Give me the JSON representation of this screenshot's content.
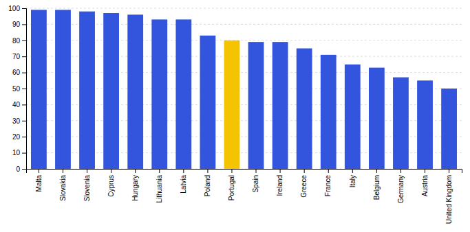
{
  "chart_data": {
    "type": "bar",
    "categories": [
      "Malta",
      "Slovakia",
      "Slovenia",
      "Cyprus",
      "Hungary",
      "Lithuania",
      "Latvia",
      "Poland",
      "Portugal",
      "Spain",
      "Ireland",
      "Greece",
      "France",
      "Italy",
      "Belgium",
      "Germany",
      "Austria",
      "United Kingdom"
    ],
    "values": [
      99,
      99,
      98,
      97,
      96,
      93,
      93,
      83,
      80,
      79,
      79,
      75,
      71,
      65,
      63,
      57,
      55,
      50
    ],
    "colors": [
      "#3355dd",
      "#3355dd",
      "#3355dd",
      "#3355dd",
      "#3355dd",
      "#3355dd",
      "#3355dd",
      "#3355dd",
      "#f5c400",
      "#3355dd",
      "#3355dd",
      "#3355dd",
      "#3355dd",
      "#3355dd",
      "#3355dd",
      "#3355dd",
      "#3355dd",
      "#3355dd"
    ],
    "ylim": [
      0,
      100
    ],
    "yticks": [
      0,
      10,
      20,
      30,
      40,
      50,
      60,
      70,
      80,
      90,
      100
    ],
    "grid": true
  }
}
